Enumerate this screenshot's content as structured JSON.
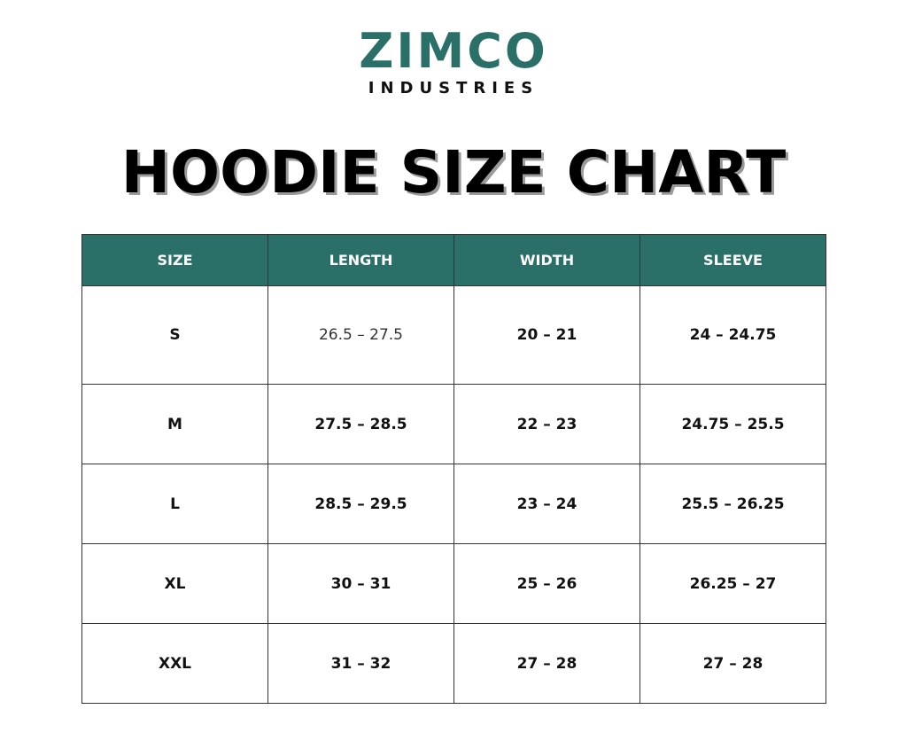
{
  "logo": {
    "name": "ZIMCO",
    "tagline": "INDUSTRIES",
    "brand_color": "#2b6f69"
  },
  "title": "HOODIE SIZE CHART",
  "table": {
    "headers": [
      "SIZE",
      "LENGTH",
      "WIDTH",
      "SLEEVE"
    ],
    "rows": [
      [
        "S",
        "26.5 – 27.5",
        "20 – 21",
        "24 – 24.75"
      ],
      [
        "M",
        "27.5 – 28.5",
        "22 – 23",
        "24.75 – 25.5"
      ],
      [
        "L",
        "28.5 – 29.5",
        "23 – 24",
        "25.5 – 26.25"
      ],
      [
        "XL",
        "30 – 31",
        "25 – 26",
        "26.25 – 27"
      ],
      [
        "XXL",
        "31 – 32",
        "27 – 28",
        "27 – 28"
      ]
    ]
  }
}
